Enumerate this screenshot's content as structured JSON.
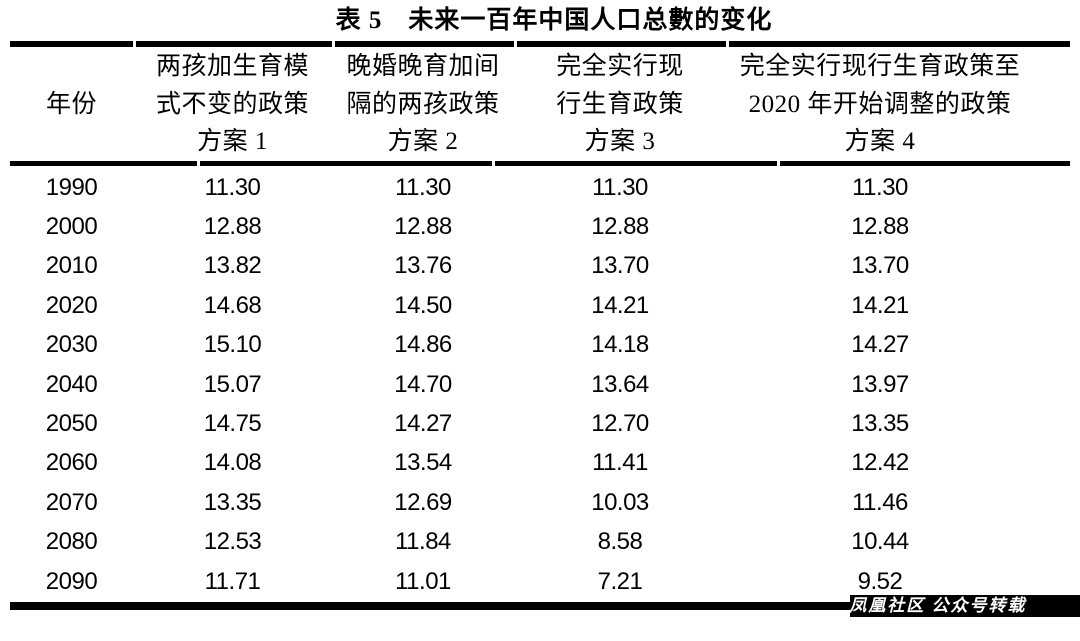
{
  "title": "表 5　未来一百年中国人口总數的变化",
  "table": {
    "columns": [
      {
        "id": "year",
        "lines": [
          "年份"
        ]
      },
      {
        "id": "plan1",
        "lines": [
          "两孩加生育模",
          "式不变的政策",
          "方案 1"
        ]
      },
      {
        "id": "plan2",
        "lines": [
          "晚婚晚育加间",
          "隔的两孩政策",
          "方案 2"
        ]
      },
      {
        "id": "plan3",
        "lines": [
          "完全实行现",
          "行生育政策",
          "方案 3"
        ]
      },
      {
        "id": "plan4",
        "lines": [
          "完全实行现行生育政策至",
          "2020 年开始调整的政策",
          "方案 4"
        ]
      }
    ],
    "rows": [
      {
        "year": "1990",
        "values": [
          "11.30",
          "11.30",
          "11.30",
          "11.30"
        ]
      },
      {
        "year": "2000",
        "values": [
          "12.88",
          "12.88",
          "12.88",
          "12.88"
        ]
      },
      {
        "year": "2010",
        "values": [
          "13.82",
          "13.76",
          "13.70",
          "13.70"
        ]
      },
      {
        "year": "2020",
        "values": [
          "14.68",
          "14.50",
          "14.21",
          "14.21"
        ]
      },
      {
        "year": "2030",
        "values": [
          "15.10",
          "14.86",
          "14.18",
          "14.27"
        ]
      },
      {
        "year": "2040",
        "values": [
          "15.07",
          "14.70",
          "13.64",
          "13.97"
        ]
      },
      {
        "year": "2050",
        "values": [
          "14.75",
          "14.27",
          "12.70",
          "13.35"
        ]
      },
      {
        "year": "2060",
        "values": [
          "14.08",
          "13.54",
          "11.41",
          "12.42"
        ]
      },
      {
        "year": "2070",
        "values": [
          "13.35",
          "12.69",
          "10.03",
          "11.46"
        ]
      },
      {
        "year": "2080",
        "values": [
          "12.53",
          "11.84",
          "8.58",
          "10.44"
        ]
      },
      {
        "year": "2090",
        "values": [
          "11.71",
          "11.01",
          "7.21",
          "9.52"
        ]
      }
    ]
  },
  "watermark": {
    "text": "凤凰社区 公众号转载"
  },
  "colors": {
    "background": "#ffffff",
    "text": "#000000",
    "rule": "#000000"
  },
  "chart_data": {
    "type": "table",
    "title": "表 5　未来一百年中国人口总數的变化",
    "xlabel": "年份",
    "categories": [
      1990,
      2000,
      2010,
      2020,
      2030,
      2040,
      2050,
      2060,
      2070,
      2080,
      2090
    ],
    "series": [
      {
        "name": "两孩加生育模式不变的政策 方案 1",
        "values": [
          11.3,
          12.88,
          13.82,
          14.68,
          15.1,
          15.07,
          14.75,
          14.08,
          13.35,
          12.53,
          11.71
        ]
      },
      {
        "name": "晚婚晚育加间隔的两孩政策 方案 2",
        "values": [
          11.3,
          12.88,
          13.76,
          14.5,
          14.86,
          14.7,
          14.27,
          13.54,
          12.69,
          11.84,
          11.01
        ]
      },
      {
        "name": "完全实行现行生育政策 方案 3",
        "values": [
          11.3,
          12.88,
          13.7,
          14.21,
          14.18,
          13.64,
          12.7,
          11.41,
          10.03,
          8.58,
          7.21
        ]
      },
      {
        "name": "完全实行现行生育政策至 2020 年开始调整的政策 方案 4",
        "values": [
          11.3,
          12.88,
          13.7,
          14.21,
          14.27,
          13.97,
          13.35,
          12.42,
          11.46,
          10.44,
          9.52
        ]
      }
    ]
  }
}
